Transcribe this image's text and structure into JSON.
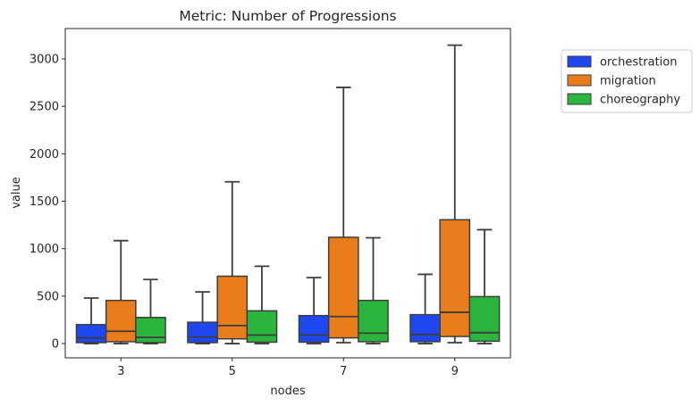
{
  "chart_data": {
    "type": "boxplot",
    "title": "Metric: Number of Progressions",
    "xlabel": "nodes",
    "ylabel": "value",
    "categories": [
      "3",
      "5",
      "7",
      "9"
    ],
    "ylim": [
      -150,
      3320
    ],
    "yticks": [
      0,
      500,
      1000,
      1500,
      2000,
      2500,
      3000
    ],
    "legend_position": "outside-right",
    "grid": false,
    "series": [
      {
        "name": "orchestration",
        "color": "#1f47f0",
        "boxes": [
          {
            "whisker_low": 0,
            "q1": 10,
            "median": 60,
            "q3": 200,
            "whisker_high": 480
          },
          {
            "whisker_low": 0,
            "q1": 10,
            "median": 70,
            "q3": 225,
            "whisker_high": 545
          },
          {
            "whisker_low": 0,
            "q1": 15,
            "median": 90,
            "q3": 295,
            "whisker_high": 695
          },
          {
            "whisker_low": 0,
            "q1": 20,
            "median": 95,
            "q3": 305,
            "whisker_high": 730
          }
        ]
      },
      {
        "name": "migration",
        "color": "#e97d1c",
        "boxes": [
          {
            "whisker_low": 0,
            "q1": 20,
            "median": 130,
            "q3": 455,
            "whisker_high": 1085
          },
          {
            "whisker_low": 0,
            "q1": 50,
            "median": 190,
            "q3": 710,
            "whisker_high": 1705
          },
          {
            "whisker_low": 10,
            "q1": 60,
            "median": 285,
            "q3": 1120,
            "whisker_high": 2700
          },
          {
            "whisker_low": 10,
            "q1": 75,
            "median": 330,
            "q3": 1305,
            "whisker_high": 3145
          }
        ]
      },
      {
        "name": "choreography",
        "color": "#2ab53c",
        "boxes": [
          {
            "whisker_low": 0,
            "q1": 10,
            "median": 65,
            "q3": 275,
            "whisker_high": 675
          },
          {
            "whisker_low": 0,
            "q1": 15,
            "median": 90,
            "q3": 345,
            "whisker_high": 815
          },
          {
            "whisker_low": 0,
            "q1": 20,
            "median": 110,
            "q3": 455,
            "whisker_high": 1115
          },
          {
            "whisker_low": 0,
            "q1": 25,
            "median": 115,
            "q3": 495,
            "whisker_high": 1200
          }
        ]
      }
    ]
  }
}
